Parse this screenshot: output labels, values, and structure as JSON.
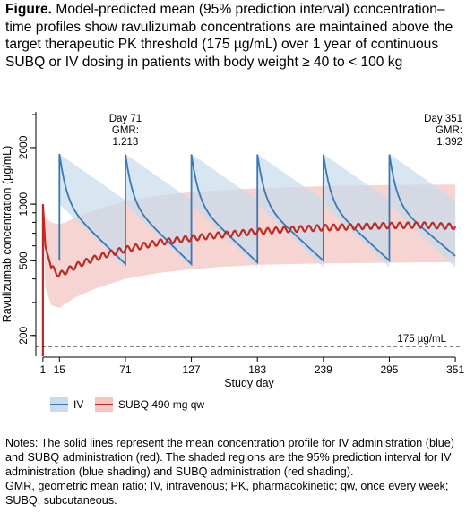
{
  "caption": {
    "label": "Figure.",
    "text": "Model-predicted mean (95% prediction interval) concentration–time profiles show ravulizumab concentrations are maintained above the target therapeutic PK threshold (175 µg/mL) over 1 year of continuous SUBQ or IV dosing in patients with body weight ≥ 40 to < 100 kg"
  },
  "notes": {
    "line1": "Notes: The solid lines represent the mean concentration profile for IV administration (blue) and SUBQ administration (red). The shaded regions are the 95% prediction interval for IV administration (blue shading) and SUBQ administration (red shading).",
    "line2": "GMR, geometric mean ratio; IV, intravenous; PK, pharmacokinetic; qw, once every week; SUBQ, subcutaneous."
  },
  "colors": {
    "iv": "#3a78b5",
    "iv_band": "#c8dceb",
    "subq": "#bf2a24",
    "subq_band": "#f3c6c3"
  },
  "chart_data": {
    "type": "line",
    "xlabel": "Study day",
    "ylabel": "Ravulizumab concentration (µg/mL)",
    "yscale": "log",
    "xlim": [
      -5,
      357
    ],
    "ylim": [
      155,
      3100
    ],
    "x_ticks": [
      1,
      15,
      71,
      127,
      183,
      239,
      295,
      351
    ],
    "y_ticks": [
      200,
      500,
      1000,
      2000
    ],
    "threshold": {
      "value": 175,
      "label": "175 µg/mL"
    },
    "annotations": [
      {
        "day": 71,
        "line1": "Day 71",
        "line2": "GMR:",
        "line3": "1.213"
      },
      {
        "day": 351,
        "line1": "Day 351",
        "line2": "GMR:",
        "line3": "1.392"
      }
    ],
    "iv": {
      "name": "IV",
      "dose_days": [
        15,
        71,
        127,
        183,
        239,
        295
      ],
      "peak": [
        1850,
        1840,
        1840,
        1840,
        1840,
        1840
      ],
      "trough": [
        480,
        480,
        490,
        500,
        500,
        530
      ],
      "band_upper_peak": 1850,
      "band_upper_trough": 1050,
      "band_lower_peak": 1000,
      "band_lower_trough": 460
    },
    "subq": {
      "name": "SUBQ 490 mg qw",
      "x": [
        1,
        3,
        8,
        15,
        22,
        29,
        43,
        57,
        71,
        99,
        127,
        155,
        183,
        211,
        239,
        267,
        295,
        323,
        351
      ],
      "y": [
        1000,
        600,
        460,
        420,
        445,
        470,
        510,
        545,
        575,
        625,
        660,
        690,
        715,
        735,
        750,
        760,
        770,
        775,
        760
      ],
      "upper": [
        1000,
        850,
        800,
        780,
        810,
        850,
        920,
        980,
        1040,
        1110,
        1160,
        1190,
        1215,
        1230,
        1245,
        1255,
        1265,
        1270,
        1270
      ],
      "lower": [
        1000,
        360,
        290,
        280,
        300,
        320,
        350,
        375,
        400,
        430,
        450,
        465,
        475,
        480,
        483,
        486,
        488,
        490,
        490
      ]
    }
  }
}
